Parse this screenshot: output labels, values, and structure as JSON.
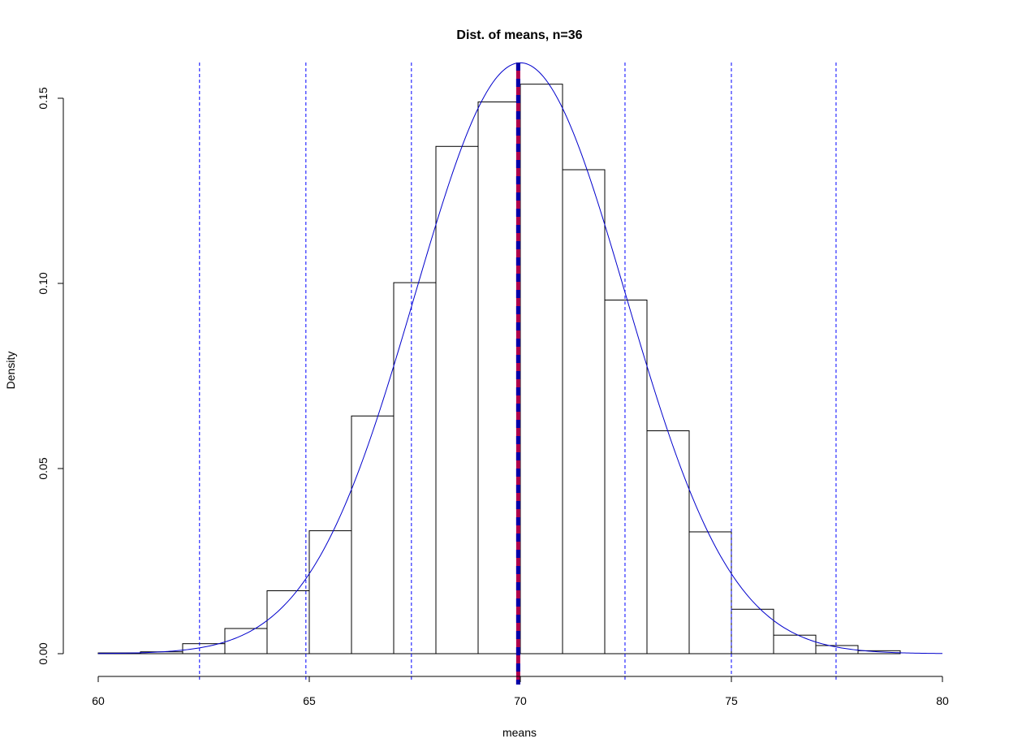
{
  "chart_data": {
    "type": "bar",
    "title": "Dist. of means, n=36",
    "xlabel": "means",
    "ylabel": "Density",
    "xlim": [
      60,
      80
    ],
    "ylim": [
      0,
      0.16
    ],
    "x_ticks": [
      60,
      65,
      70,
      75,
      80
    ],
    "y_ticks": [
      0.0,
      0.05,
      0.1,
      0.15
    ],
    "x_tick_labels": [
      "60",
      "65",
      "70",
      "75",
      "80"
    ],
    "y_tick_labels": [
      "0.00",
      "0.05",
      "0.10",
      "0.15"
    ],
    "histogram": {
      "bin_edges": [
        60,
        61,
        62,
        63,
        64,
        65,
        66,
        67,
        68,
        69,
        70,
        71,
        72,
        73,
        74,
        75,
        76,
        77,
        78,
        79
      ],
      "densities": [
        0.0002,
        0.0005,
        0.0027,
        0.0068,
        0.017,
        0.0332,
        0.0642,
        0.1002,
        0.137,
        0.149,
        0.1538,
        0.1307,
        0.0955,
        0.0602,
        0.0329,
        0.012,
        0.005,
        0.0022,
        0.0008
      ]
    },
    "normal_curve": {
      "mean": 70,
      "sd": 2.5,
      "range": [
        60,
        80
      ],
      "color": "#0000cc"
    },
    "vertical_lines_dashed": {
      "x": [
        62.4,
        64.92,
        67.42,
        72.48,
        75.0,
        77.48
      ],
      "color": "#0000ff"
    },
    "mean_line": {
      "x": 69.95,
      "colors": [
        "#b0004a",
        "#0000aa"
      ]
    },
    "colors": {
      "bars_stroke": "#000000",
      "bars_fill": "#ffffff"
    }
  }
}
